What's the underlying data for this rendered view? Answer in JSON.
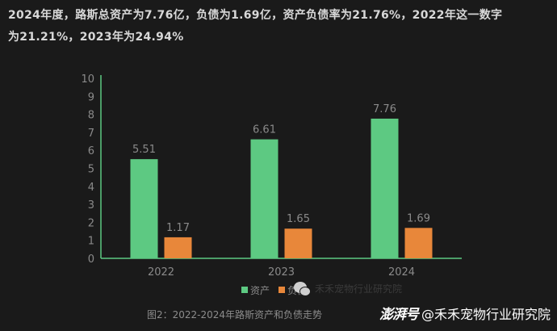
{
  "intro": {
    "line1": "2024年度，路斯总资产为7.76亿，负债为1.69亿，资产负债率为21.76%，2022年这一数字",
    "line2": "为21.21%，2023年为24.94%"
  },
  "chart_data": {
    "type": "bar",
    "categories": [
      "2022",
      "2023",
      "2024"
    ],
    "series": [
      {
        "name": "资产",
        "values": [
          5.51,
          6.61,
          7.76
        ],
        "color": "#5dc982"
      },
      {
        "name": "负债",
        "values": [
          1.17,
          1.65,
          1.69
        ],
        "color": "#e8873a"
      }
    ],
    "data_labels": {
      "资产": [
        "5.51",
        "6.61",
        "7.76"
      ],
      "负债": [
        "1.17",
        "1.65",
        "1.69"
      ]
    },
    "ylim": [
      0,
      10
    ],
    "yticks": [
      "0",
      "1",
      "2",
      "3",
      "4",
      "5",
      "6",
      "7",
      "8",
      "9",
      "10"
    ],
    "grid": false,
    "legend_placement": "bottom-center",
    "axis_color": "#5dc982",
    "label_color": "#8a8a8a"
  },
  "caption": "图2：2022-2024年路斯资产和负债走势",
  "watermark": "禾禾宠物行业研究院",
  "credit": {
    "logo": "澎湃号",
    "text": "@禾禾宠物行业研究院"
  }
}
